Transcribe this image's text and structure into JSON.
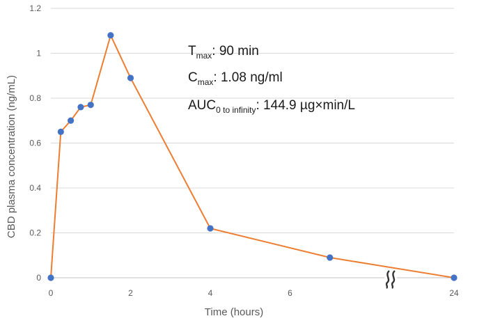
{
  "chart_data": {
    "type": "line",
    "title": "",
    "xlabel": "Time (hours)",
    "ylabel": "CBD plasma concentration (ng/mL)",
    "ylim": [
      0,
      1.2
    ],
    "y_ticks": [
      "0",
      "0.2",
      "0.4",
      "0.6",
      "0.8",
      "1",
      "1.2"
    ],
    "x_ticks": [
      "0",
      "2",
      "4",
      "6",
      "24"
    ],
    "axis_break": "between 6 and 24 hours",
    "grid": "horizontal",
    "legend": "none",
    "series": [
      {
        "x": [
          0,
          0.25,
          0.5,
          0.75,
          1,
          1.5,
          2,
          4,
          7,
          24
        ],
        "y": [
          0,
          0.65,
          0.7,
          0.76,
          0.77,
          1.08,
          0.89,
          0.22,
          0.09,
          0
        ]
      }
    ],
    "annotations": [
      {
        "main": "T",
        "sub": "max",
        "rest": ": 90 min"
      },
      {
        "main": "C",
        "sub": "max",
        "rest": ": 1.08 ng/ml"
      },
      {
        "main": "AUC",
        "sub": "0 to infinity",
        "rest": ": 144.9 µg×min/L"
      }
    ],
    "colors": {
      "line": "#ed7d31",
      "marker": "#4472c4",
      "grid": "#d9d9d9"
    }
  }
}
